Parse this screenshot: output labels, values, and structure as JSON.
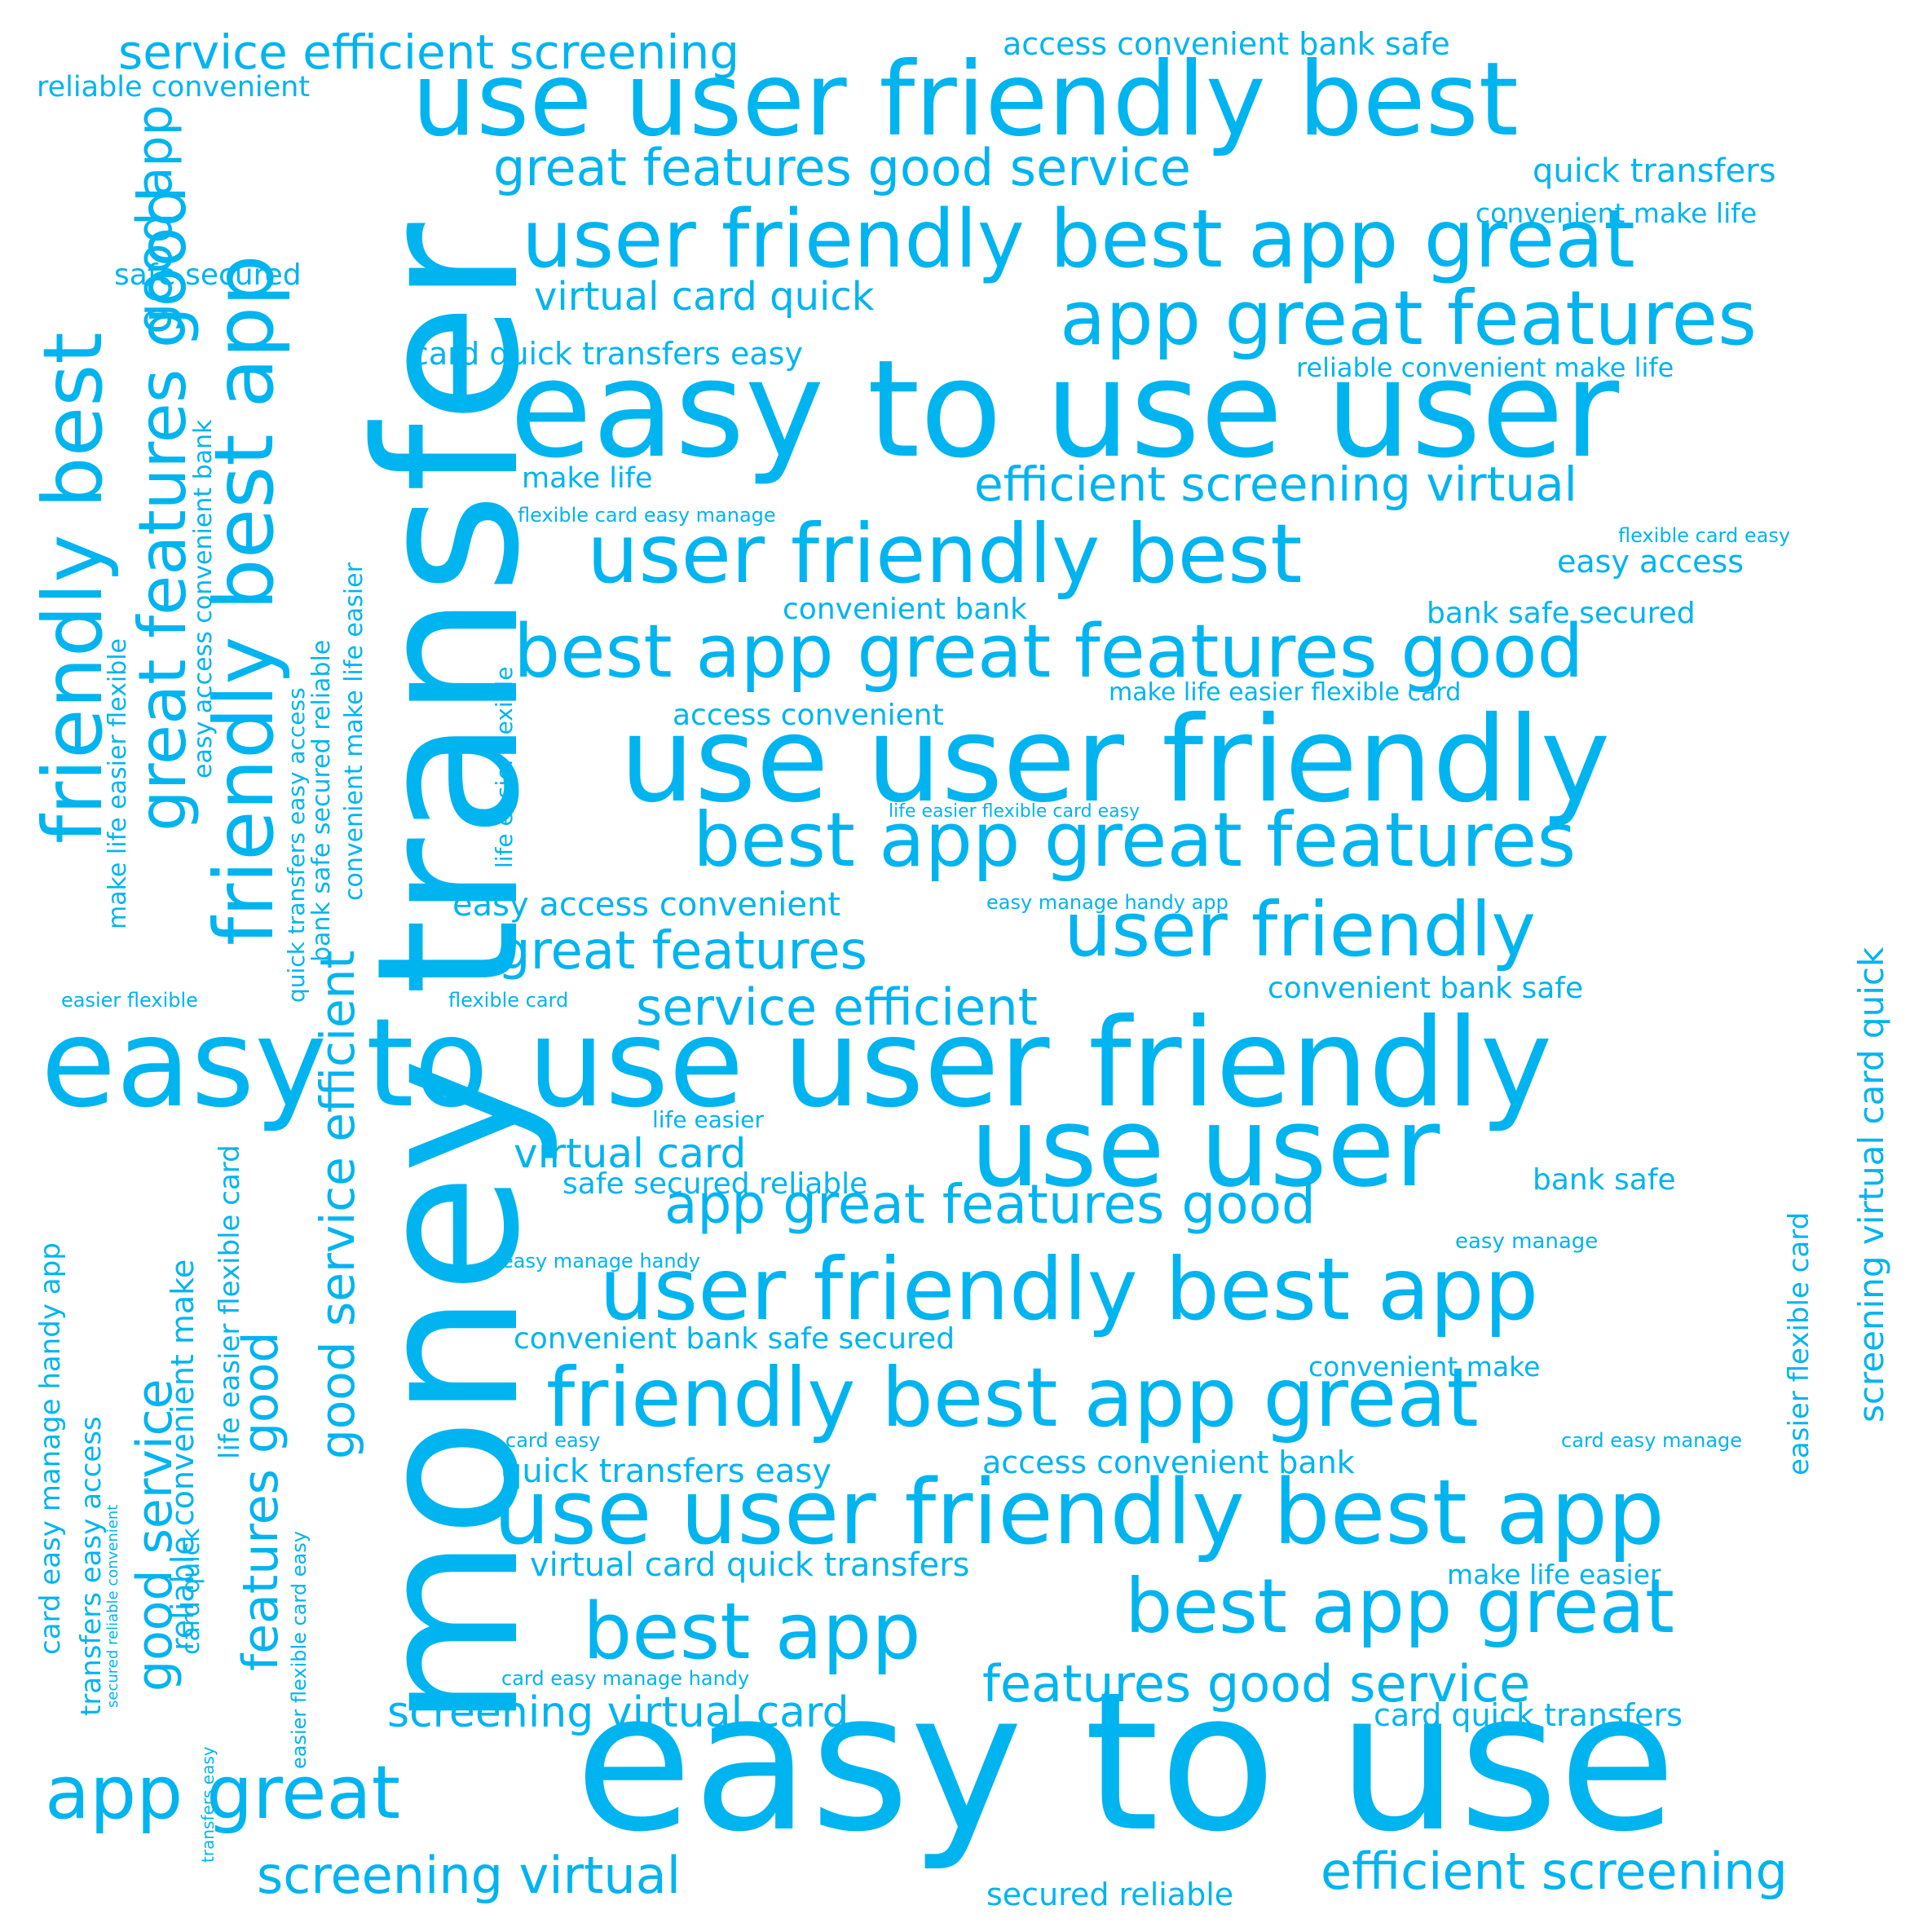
{
  "color": "#00b4f0",
  "background": "#ffffff",
  "words": [
    "easy to use",
    "money transfer",
    "easy to use user friendly",
    "easy to use user",
    "use user friendly best",
    "use user friendly",
    "use user",
    "use user friendly best app",
    "user friendly best app great",
    "app great features",
    "user friendly best",
    "best app great features good",
    "best app great features",
    "user friendly best app",
    "friendly best app great",
    "best app great",
    "best app",
    "user friendly",
    "app great",
    "friendly best",
    "friendly best app",
    "great features good service",
    "app great features good",
    "great features",
    "efficient screening virtual",
    "service efficient",
    "features good service",
    "service efficient screening",
    "screening virtual card",
    "efficient screening",
    "screening virtual",
    "great features good",
    "good service efficient",
    "features good",
    "good service",
    "good app",
    "virtual card quick",
    "virtual card",
    "virtual card quick transfers",
    "card quick transfers easy",
    "card quick transfers",
    "quick transfers easy",
    "quick transfers",
    "screening virtual card quick",
    "access convenient bank safe",
    "reliable convenient",
    "convenient make life",
    "safe secured",
    "reliable convenient make life",
    "make life",
    "flexible card easy manage",
    "flexible card easy",
    "easy access",
    "convenient bank",
    "bank safe secured",
    "make life easier flexible card",
    "access convenient",
    "life easier flexible card easy",
    "easy access convenient",
    "easy manage handy app",
    "convenient bank safe",
    "easier flexible",
    "flexible card",
    "life easier",
    "safe secured reliable",
    "bank safe",
    "easy manage",
    "easy manage handy",
    "convenient bank safe secured",
    "convenient make",
    "card easy",
    "card easy manage",
    "access convenient bank",
    "make life easier",
    "card easy manage handy",
    "secured reliable",
    "reliable convenient make",
    "make life easier flexible",
    "easy access convenient bank",
    "bank safe secured reliable",
    "convenient make life easier",
    "life easier flexible",
    "quick transfers easy access",
    "transfers easy access",
    "card easy manage handy app",
    "secured reliable convenient",
    "card quick",
    "life easier flexible card",
    "easier flexible card easy",
    "transfers easy",
    "easier flexible card"
  ]
}
